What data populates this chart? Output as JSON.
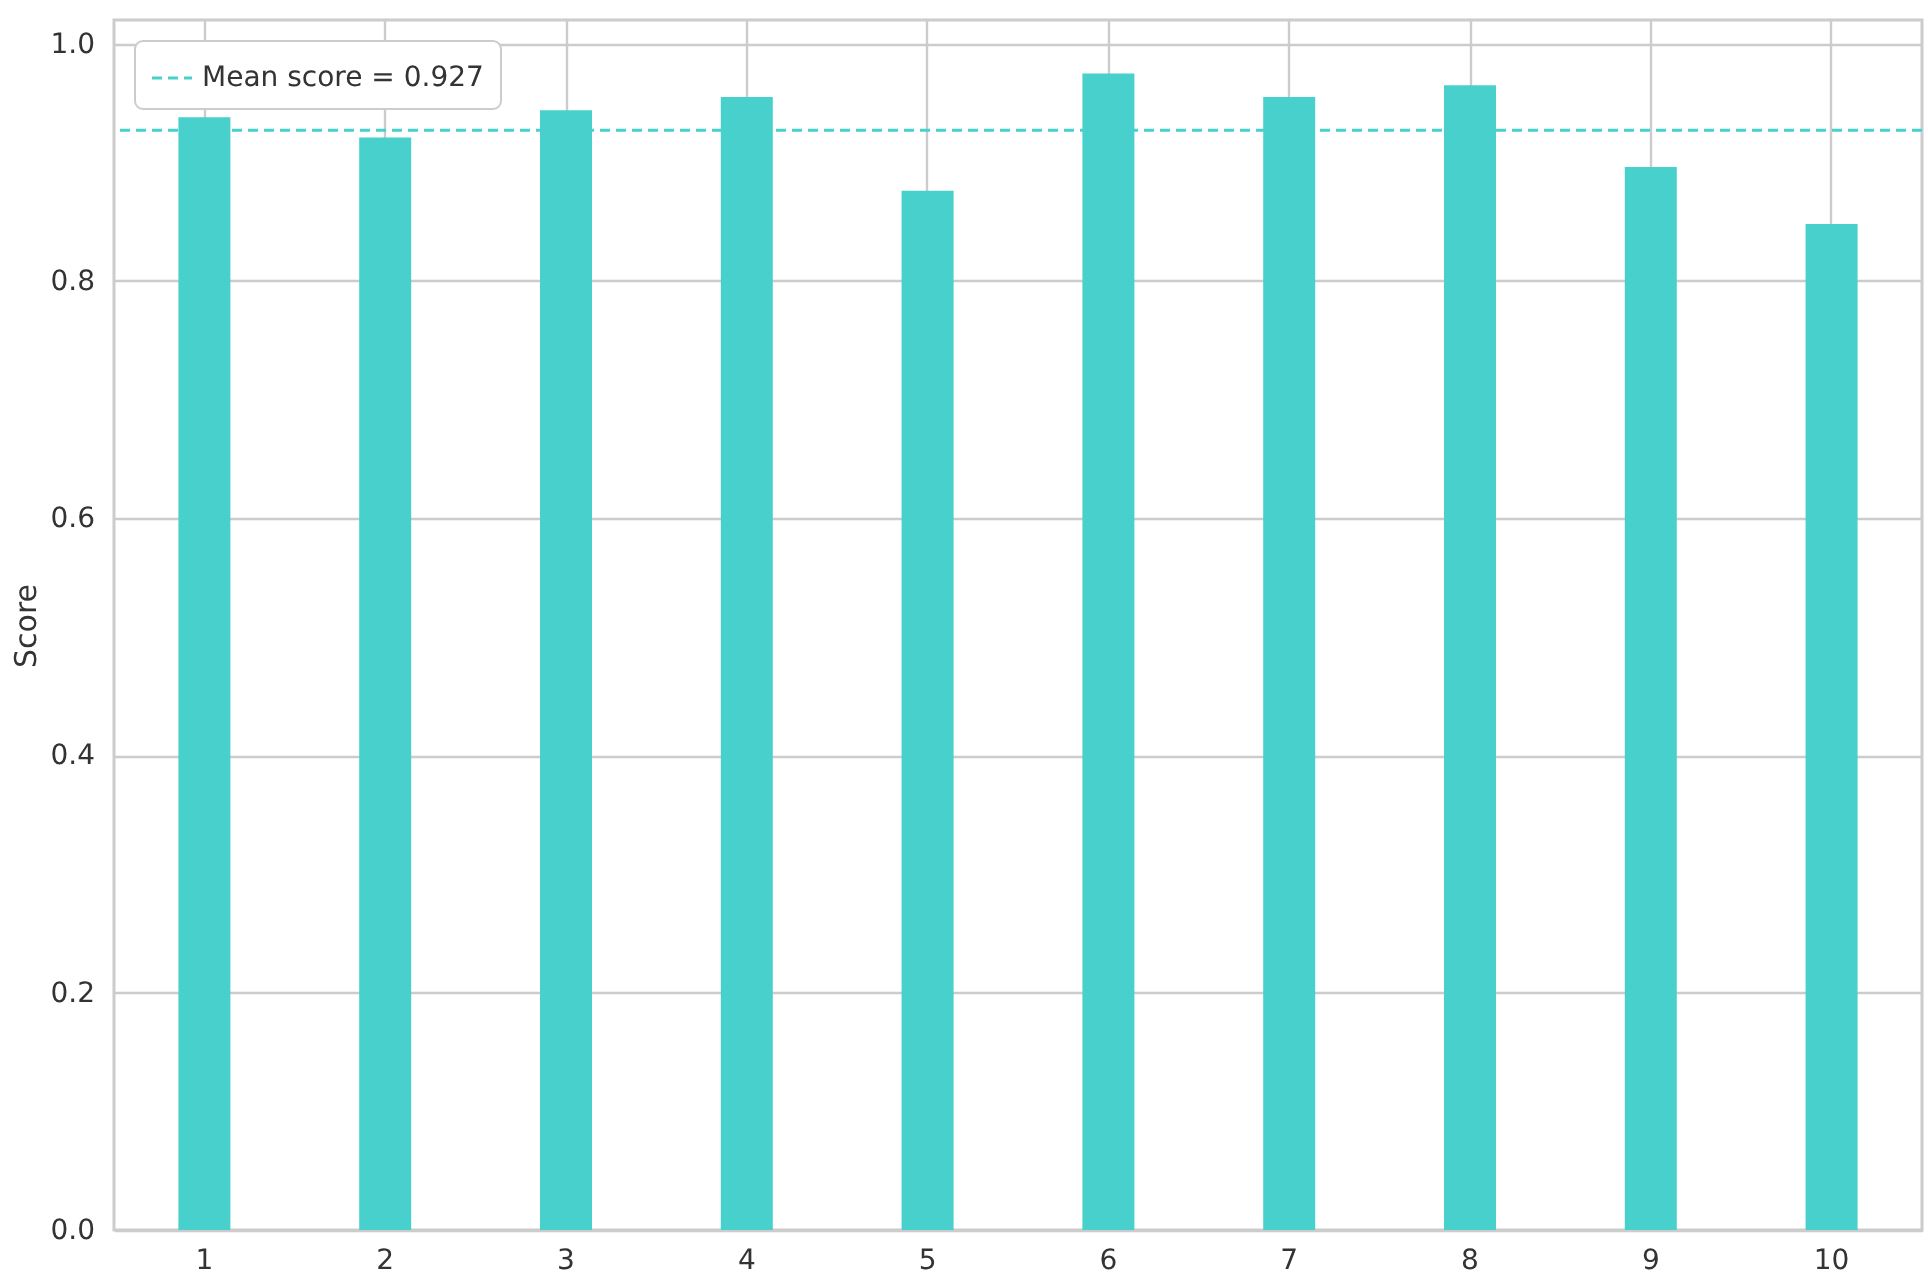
{
  "chart_data": {
    "type": "bar",
    "ylabel": "Score",
    "categories": [
      "1",
      "2",
      "3",
      "4",
      "5",
      "6",
      "7",
      "8",
      "9",
      "10"
    ],
    "values": [
      0.938,
      0.921,
      0.944,
      0.955,
      0.876,
      0.975,
      0.955,
      0.965,
      0.896,
      0.848
    ],
    "color": "#48d1cc",
    "ylim": [
      0,
      1.02
    ],
    "yticks": [
      {
        "value": 0,
        "label": "0.0"
      },
      0.2,
      0.4,
      0.6,
      0.8,
      {
        "value": 1,
        "label": "1.0"
      }
    ],
    "grid": true,
    "legend": "top left",
    "ref_lines": [
      {
        "axis": "y",
        "value": 0.927,
        "label": "Mean score = 0.927",
        "color": "#48d1cc",
        "line_style": "dashed"
      }
    ]
  }
}
